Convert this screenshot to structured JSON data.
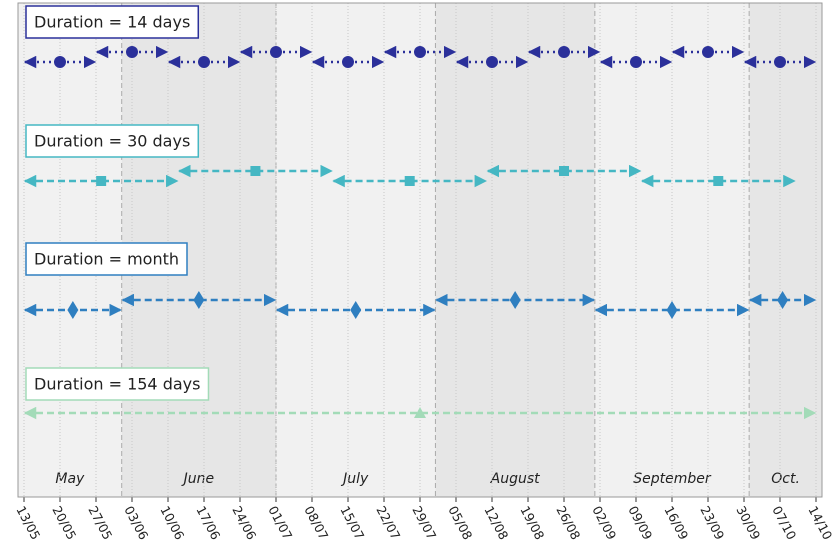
{
  "chart_data": {
    "type": "timeline",
    "xlim": [
      "13/05",
      "14/10"
    ],
    "xticks": [
      "13/05",
      "20/05",
      "27/05",
      "03/06",
      "10/06",
      "17/06",
      "24/06",
      "01/07",
      "08/07",
      "15/07",
      "22/07",
      "29/07",
      "05/08",
      "12/08",
      "19/08",
      "26/08",
      "02/09",
      "09/09",
      "16/09",
      "23/09",
      "30/09",
      "07/10",
      "14/10"
    ],
    "months": [
      {
        "label": "May",
        "start": "13/05",
        "end": "01/06"
      },
      {
        "label": "June",
        "start": "01/06",
        "end": "01/07"
      },
      {
        "label": "July",
        "start": "01/07",
        "end": "01/08"
      },
      {
        "label": "August",
        "start": "01/08",
        "end": "01/09"
      },
      {
        "label": "September",
        "start": "01/09",
        "end": "01/10"
      },
      {
        "label": "Oct.",
        "start": "01/10",
        "end": "14/10"
      }
    ],
    "series": [
      {
        "name": "Duration = 14 days",
        "color": "#2b309a",
        "marker": "circle",
        "linestyle": "dotted",
        "segments": [
          {
            "start": "13/05",
            "end": "27/05"
          },
          {
            "start": "27/05",
            "end": "10/06"
          },
          {
            "start": "10/06",
            "end": "24/06"
          },
          {
            "start": "24/06",
            "end": "08/07"
          },
          {
            "start": "08/07",
            "end": "22/07"
          },
          {
            "start": "22/07",
            "end": "05/08"
          },
          {
            "start": "05/08",
            "end": "19/08"
          },
          {
            "start": "19/08",
            "end": "02/09"
          },
          {
            "start": "02/09",
            "end": "16/09"
          },
          {
            "start": "16/09",
            "end": "30/09"
          },
          {
            "start": "30/09",
            "end": "14/10"
          }
        ]
      },
      {
        "name": "Duration = 30 days",
        "color": "#45b7c3",
        "marker": "square",
        "linestyle": "dashed",
        "segments": [
          {
            "start": "13/05",
            "end": "12/06"
          },
          {
            "start": "12/06",
            "end": "12/07"
          },
          {
            "start": "12/07",
            "end": "11/08"
          },
          {
            "start": "11/08",
            "end": "10/09"
          },
          {
            "start": "10/09",
            "end": "10/10"
          }
        ]
      },
      {
        "name": "Duration = month",
        "color": "#2f7fc0",
        "marker": "diamond",
        "linestyle": "dashed",
        "segments": [
          {
            "start": "13/05",
            "end": "01/06"
          },
          {
            "start": "01/06",
            "end": "01/07"
          },
          {
            "start": "01/07",
            "end": "01/08"
          },
          {
            "start": "01/08",
            "end": "01/09"
          },
          {
            "start": "01/09",
            "end": "01/10"
          },
          {
            "start": "01/10",
            "end": "14/10"
          }
        ]
      },
      {
        "name": "Duration = 154 days",
        "color": "#a3dbb8",
        "marker": "triangle",
        "linestyle": "dashed",
        "segments": [
          {
            "start": "13/05",
            "end": "14/10"
          }
        ]
      }
    ]
  }
}
